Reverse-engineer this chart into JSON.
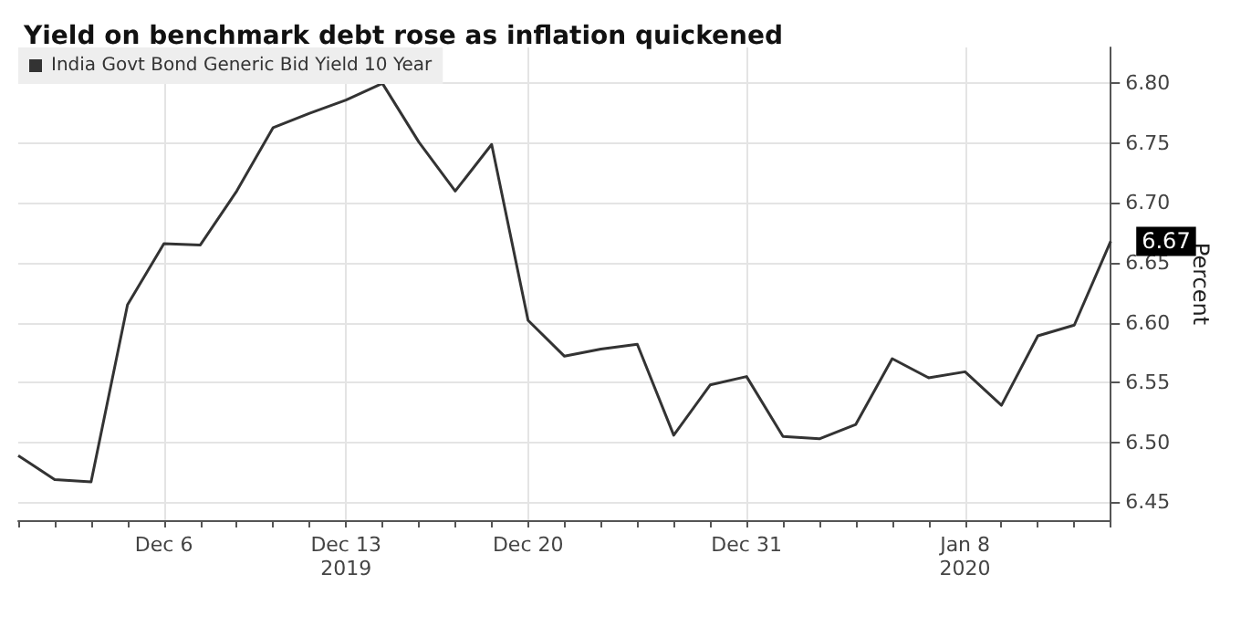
{
  "chart_data": {
    "type": "line",
    "title": "Yield on benchmark debt rose as inflation quickened",
    "ylabel": "Percent",
    "categories": [
      null,
      null,
      null,
      null,
      "Dec 6",
      null,
      null,
      null,
      null,
      "Dec 13",
      null,
      null,
      null,
      null,
      "Dec 20",
      null,
      null,
      null,
      null,
      null,
      "Dec 31",
      null,
      null,
      null,
      null,
      null,
      "Jan 8",
      null,
      null,
      null,
      null
    ],
    "series": [
      {
        "name": "India Govt Bond Generic Bid Yield 10 Year",
        "color": "#333333",
        "values": [
          6.489,
          6.469,
          6.467,
          6.615,
          6.666,
          6.665,
          6.71,
          6.763,
          6.775,
          6.786,
          6.8,
          6.751,
          6.71,
          6.749,
          6.602,
          6.572,
          6.578,
          6.582,
          6.506,
          6.548,
          6.555,
          6.505,
          6.503,
          6.515,
          6.57,
          6.554,
          6.559,
          6.531,
          6.589,
          6.598,
          6.668
        ],
        "value_labels": [
          null,
          null,
          null,
          null,
          null,
          null,
          null,
          null,
          null,
          null,
          null,
          null,
          null,
          null,
          null,
          null,
          null,
          null,
          null,
          null,
          null,
          null,
          null,
          null,
          null,
          null,
          null,
          null,
          null,
          null,
          "6.67"
        ]
      }
    ],
    "ylim": [
      6.435,
      6.83
    ],
    "yticks": [
      {
        "value": 6.45,
        "label": "6.45"
      },
      {
        "value": 6.5,
        "label": "6.50"
      },
      {
        "value": 6.55,
        "label": "6.55"
      },
      {
        "value": 6.6,
        "label": "6.60"
      },
      {
        "value": 6.65,
        "label": "6.65"
      },
      {
        "value": 6.7,
        "label": "6.70"
      },
      {
        "value": 6.75,
        "label": "6.75"
      },
      {
        "value": 6.8,
        "label": "6.80"
      }
    ],
    "annotations": [
      "2019",
      "2020"
    ],
    "grid": true,
    "legend": "top left",
    "marker": "none",
    "line_style": "solid"
  }
}
